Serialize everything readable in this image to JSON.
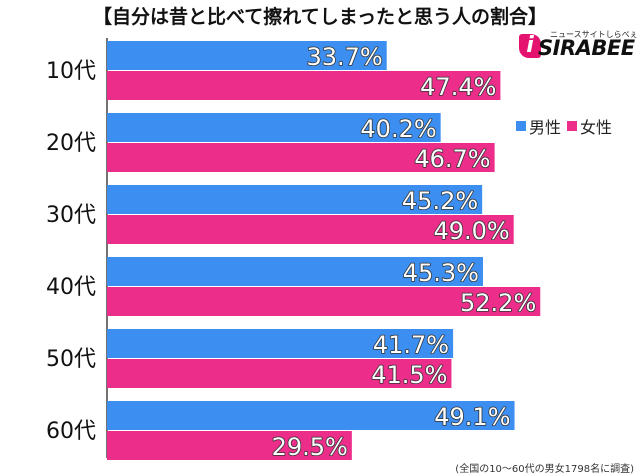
{
  "chart_data": {
    "type": "bar",
    "orientation": "horizontal",
    "title": "【自分は昔と比べて擦れてしまったと思う人の割合】",
    "categories": [
      "10代",
      "20代",
      "30代",
      "40代",
      "50代",
      "60代"
    ],
    "series": [
      {
        "name": "男性",
        "color": "#3c8ef0",
        "values": [
          33.7,
          40.2,
          45.2,
          45.3,
          41.7,
          49.1
        ],
        "labels": [
          "33.7%",
          "40.2%",
          "45.2%",
          "45.3%",
          "41.7%",
          "49.1%"
        ]
      },
      {
        "name": "女性",
        "color": "#ed2d8a",
        "values": [
          47.4,
          46.7,
          49.0,
          52.2,
          41.5,
          29.5
        ],
        "labels": [
          "47.4%",
          "46.7%",
          "49.0%",
          "52.2%",
          "41.5%",
          "29.5%"
        ]
      }
    ],
    "xlim": [
      0,
      60
    ],
    "grid": false,
    "legend_position": "top-right",
    "note": "(全国の10～60代の男女1798名に調査)"
  },
  "logo": {
    "tagline": "ニュースサイトしらべぇ",
    "word": "SIRABEE",
    "mark": "i"
  }
}
